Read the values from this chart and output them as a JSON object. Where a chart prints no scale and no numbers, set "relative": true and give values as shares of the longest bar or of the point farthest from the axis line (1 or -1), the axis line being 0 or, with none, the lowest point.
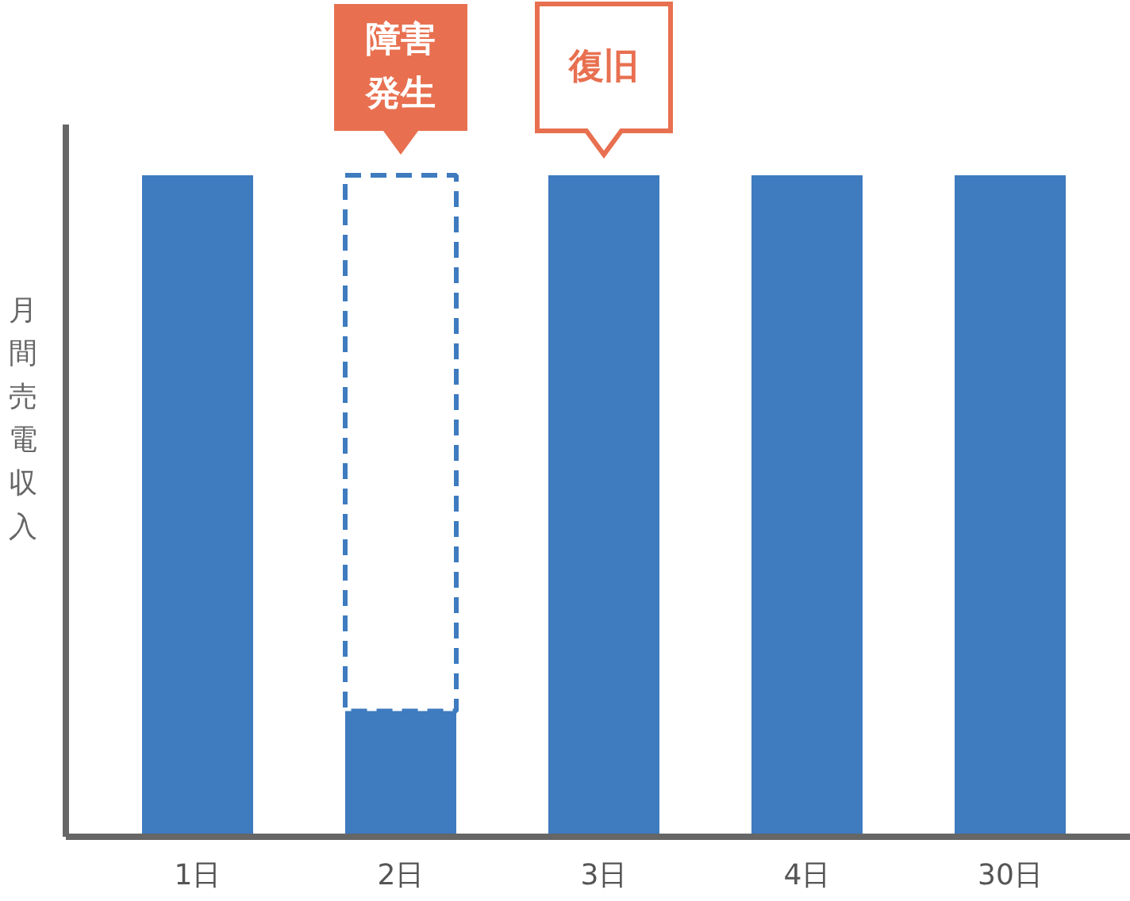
{
  "chart_data": {
    "type": "bar",
    "relative": true,
    "stacked": true,
    "ylabel": "月間売電収入",
    "categories": [
      "1日",
      "2日",
      "3日",
      "4日",
      "30日"
    ],
    "series": [
      {
        "color": "#3e7bbf",
        "values": [
          1,
          0.19,
          1,
          1,
          1
        ]
      },
      {
        "color": "#3e7bbf",
        "line_style": "dashed",
        "values": [
          null,
          0.81,
          null,
          null,
          null
        ]
      }
    ],
    "annotations": [
      {
        "text": "障害発生",
        "x": "2日",
        "y": 1
      },
      {
        "text": "復旧",
        "x": "3日",
        "y": 1
      }
    ]
  }
}
